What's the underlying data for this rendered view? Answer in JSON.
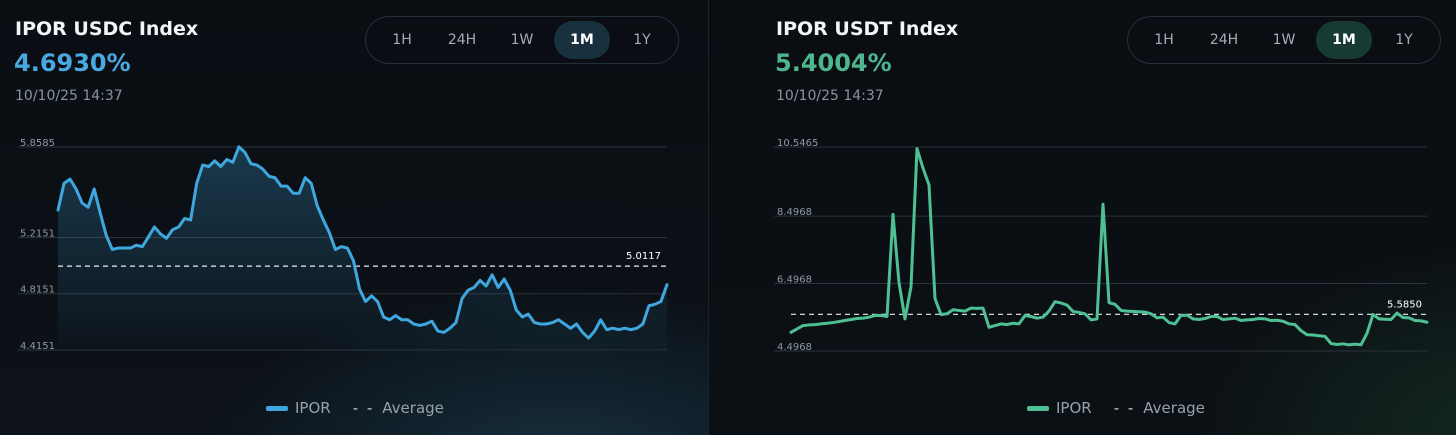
{
  "panels": [
    {
      "title": "IPOR USDC Index",
      "value": "4.6930%",
      "value_color": "#4aa8e0",
      "timestamp": "10/10/25 14:37",
      "ranges": [
        "1H",
        "24H",
        "1W",
        "1M",
        "1Y"
      ],
      "active_range": "1M"
    },
    {
      "title": "IPOR USDT Index",
      "value": "5.4004%",
      "value_color": "#4fb58e",
      "timestamp": "10/10/25 14:37",
      "ranges": [
        "1H",
        "24H",
        "1W",
        "1M",
        "1Y"
      ],
      "active_range": "1M"
    }
  ],
  "legend": {
    "series_label": "IPOR",
    "average_label": "Average",
    "average_dash": "- -"
  },
  "chart_data": [
    {
      "type": "area",
      "title": "IPOR USDC Index",
      "color": "#3fa7df",
      "yticks": [
        "5.8585",
        "5.2151",
        "4.8151",
        "4.4151"
      ],
      "ylim": [
        4.4151,
        5.8585
      ],
      "average": 5.0117,
      "average_label": "5.0117",
      "series": [
        {
          "name": "IPOR",
          "values": [
            5.41,
            5.6,
            5.63,
            5.56,
            5.46,
            5.43,
            5.56,
            5.39,
            5.23,
            5.13,
            5.14,
            5.14,
            5.14,
            5.16,
            5.15,
            5.22,
            5.29,
            5.24,
            5.21,
            5.27,
            5.29,
            5.35,
            5.34,
            5.6,
            5.73,
            5.72,
            5.76,
            5.72,
            5.77,
            5.75,
            5.86,
            5.82,
            5.74,
            5.73,
            5.7,
            5.65,
            5.64,
            5.58,
            5.58,
            5.53,
            5.53,
            5.64,
            5.6,
            5.44,
            5.34,
            5.25,
            5.13,
            5.15,
            5.14,
            5.05,
            4.85,
            4.76,
            4.8,
            4.76,
            4.65,
            4.63,
            4.66,
            4.63,
            4.63,
            4.6,
            4.59,
            4.6,
            4.62,
            4.55,
            4.54,
            4.57,
            4.61,
            4.78,
            4.84,
            4.86,
            4.91,
            4.87,
            4.95,
            4.86,
            4.92,
            4.84,
            4.7,
            4.65,
            4.67,
            4.61,
            4.6,
            4.6,
            4.61,
            4.63,
            4.6,
            4.57,
            4.6,
            4.54,
            4.5,
            4.55,
            4.63,
            4.56,
            4.57,
            4.56,
            4.57,
            4.56,
            4.57,
            4.6,
            4.73,
            4.74,
            4.76,
            4.88
          ]
        }
      ]
    },
    {
      "type": "line",
      "title": "IPOR USDT Index",
      "color": "#4fbf94",
      "yticks": [
        "10.5465",
        "8.4968",
        "6.4968",
        "4.4968"
      ],
      "ylim": [
        4.4968,
        10.5465
      ],
      "average": 5.585,
      "average_label": "5.5850",
      "series": [
        {
          "name": "IPOR",
          "values": [
            5.05,
            5.15,
            5.25,
            5.27,
            5.28,
            5.3,
            5.32,
            5.34,
            5.37,
            5.4,
            5.43,
            5.46,
            5.47,
            5.5,
            5.55,
            5.55,
            5.52,
            8.55,
            6.52,
            5.45,
            6.4,
            10.5,
            9.92,
            9.42,
            6.05,
            5.58,
            5.6,
            5.72,
            5.7,
            5.68,
            5.77,
            5.76,
            5.77,
            5.2,
            5.25,
            5.3,
            5.28,
            5.32,
            5.3,
            5.55,
            5.52,
            5.47,
            5.5,
            5.68,
            5.96,
            5.92,
            5.86,
            5.67,
            5.64,
            5.6,
            5.42,
            5.45,
            8.85,
            5.93,
            5.88,
            5.7,
            5.68,
            5.67,
            5.66,
            5.65,
            5.6,
            5.48,
            5.5,
            5.34,
            5.3,
            5.55,
            5.56,
            5.45,
            5.43,
            5.46,
            5.52,
            5.52,
            5.43,
            5.45,
            5.47,
            5.4,
            5.42,
            5.43,
            5.46,
            5.45,
            5.4,
            5.41,
            5.38,
            5.3,
            5.28,
            5.1,
            4.98,
            4.97,
            4.95,
            4.93,
            4.72,
            4.69,
            4.71,
            4.68,
            4.7,
            4.68,
            5.02,
            5.58,
            5.45,
            5.44,
            5.43,
            5.62,
            5.49,
            5.48,
            5.4,
            5.39,
            5.35
          ]
        }
      ]
    }
  ]
}
